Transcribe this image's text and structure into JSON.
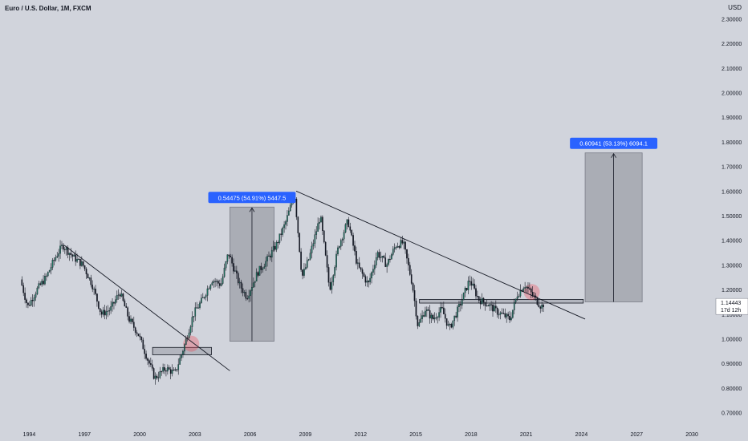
{
  "header": {
    "title": "Euro / U.S. Dollar, 1M, FXCM",
    "currency": "USD"
  },
  "colors": {
    "background": "#d1d4dc",
    "up": "#1f6f5c",
    "down": "#131722",
    "projection_fill": "#a3a6ae",
    "label_blue": "#2962ff",
    "highlight_red": "#f23645",
    "trendline": "#131722"
  },
  "price_label": {
    "value": "1.14443",
    "countdown": "17d 12h"
  },
  "chart_data": {
    "type": "candlestick",
    "title": "Euro / U.S. Dollar, 1M, FXCM",
    "xlim": [
      1993.5,
      2031.0
    ],
    "ylim": [
      0.65,
      2.35
    ],
    "x_ticks": [
      "1994",
      "1997",
      "2000",
      "2003",
      "2006",
      "2009",
      "2012",
      "2015",
      "2018",
      "2021",
      "2024",
      "2027",
      "2030"
    ],
    "x_tick_values": [
      1994,
      1997,
      2000,
      2003,
      2006,
      2009,
      2012,
      2015,
      2018,
      2021,
      2024,
      2027,
      2030
    ],
    "y_ticks": [
      "0.70000",
      "0.80000",
      "0.90000",
      "1.00000",
      "1.10000",
      "1.20000",
      "1.30000",
      "1.40000",
      "1.50000",
      "1.60000",
      "1.70000",
      "1.80000",
      "1.90000",
      "2.00000",
      "2.10000",
      "2.20000",
      "2.30000"
    ],
    "y_tick_values": [
      0.7,
      0.8,
      0.9,
      1.0,
      1.1,
      1.2,
      1.3,
      1.4,
      1.5,
      1.6,
      1.7,
      1.8,
      1.9,
      2.0,
      2.1,
      2.2,
      2.3
    ],
    "price_path": [
      [
        1993.6,
        1.24
      ],
      [
        1994.0,
        1.13
      ],
      [
        1994.5,
        1.2
      ],
      [
        1995.0,
        1.25
      ],
      [
        1995.5,
        1.33
      ],
      [
        1995.9,
        1.38
      ],
      [
        1996.5,
        1.33
      ],
      [
        1997.0,
        1.3
      ],
      [
        1997.5,
        1.22
      ],
      [
        1998.0,
        1.1
      ],
      [
        1998.5,
        1.12
      ],
      [
        1999.0,
        1.19
      ],
      [
        1999.5,
        1.08
      ],
      [
        2000.0,
        1.02
      ],
      [
        2000.5,
        0.92
      ],
      [
        2000.9,
        0.84
      ],
      [
        2001.5,
        0.88
      ],
      [
        2002.0,
        0.86
      ],
      [
        2002.5,
        0.97
      ],
      [
        2003.0,
        1.1
      ],
      [
        2003.5,
        1.16
      ],
      [
        2004.0,
        1.24
      ],
      [
        2004.5,
        1.22
      ],
      [
        2004.9,
        1.35
      ],
      [
        2005.5,
        1.22
      ],
      [
        2005.9,
        1.17
      ],
      [
        2006.5,
        1.27
      ],
      [
        2007.0,
        1.32
      ],
      [
        2007.5,
        1.38
      ],
      [
        2008.0,
        1.47
      ],
      [
        2008.5,
        1.59
      ],
      [
        2008.9,
        1.25
      ],
      [
        2009.3,
        1.33
      ],
      [
        2009.9,
        1.5
      ],
      [
        2010.4,
        1.2
      ],
      [
        2010.9,
        1.38
      ],
      [
        2011.4,
        1.48
      ],
      [
        2011.9,
        1.3
      ],
      [
        2012.5,
        1.22
      ],
      [
        2013.0,
        1.35
      ],
      [
        2013.5,
        1.3
      ],
      [
        2014.0,
        1.38
      ],
      [
        2014.4,
        1.39
      ],
      [
        2014.9,
        1.22
      ],
      [
        2015.2,
        1.05
      ],
      [
        2015.6,
        1.12
      ],
      [
        2016.0,
        1.08
      ],
      [
        2016.5,
        1.12
      ],
      [
        2016.9,
        1.04
      ],
      [
        2017.5,
        1.14
      ],
      [
        2018.0,
        1.24
      ],
      [
        2018.5,
        1.16
      ],
      [
        2019.0,
        1.14
      ],
      [
        2019.5,
        1.11
      ],
      [
        2020.2,
        1.08
      ],
      [
        2020.6,
        1.18
      ],
      [
        2021.0,
        1.22
      ],
      [
        2021.5,
        1.17
      ],
      [
        2021.9,
        1.13
      ],
      [
        2022.0,
        1.14
      ]
    ],
    "trendlines": [
      {
        "from": [
          1995.9,
          1.38
        ],
        "to": [
          2004.9,
          0.87
        ]
      },
      {
        "from": [
          2008.5,
          1.6
        ],
        "to": [
          2024.2,
          1.08
        ]
      }
    ],
    "zones": [
      {
        "x": [
          2000.7,
          2003.9
        ],
        "y": [
          0.935,
          0.965
        ]
      },
      {
        "x": [
          2015.2,
          2024.1
        ],
        "y": [
          1.145,
          1.16
        ]
      }
    ],
    "highlights": [
      {
        "x": 2002.8,
        "y": 0.98
      },
      {
        "x": 2021.3,
        "y": 1.19
      }
    ],
    "projections": [
      {
        "x": [
          2004.9,
          2007.3
        ],
        "y": [
          0.99,
          1.535
        ],
        "label": "0.54475 (54.91%) 5447.5"
      },
      {
        "x": [
          2024.2,
          2027.3
        ],
        "y": [
          1.15,
          1.755
        ],
        "label": "0.60941 (53.13%) 6094.1"
      }
    ],
    "current_price": 1.14443
  }
}
